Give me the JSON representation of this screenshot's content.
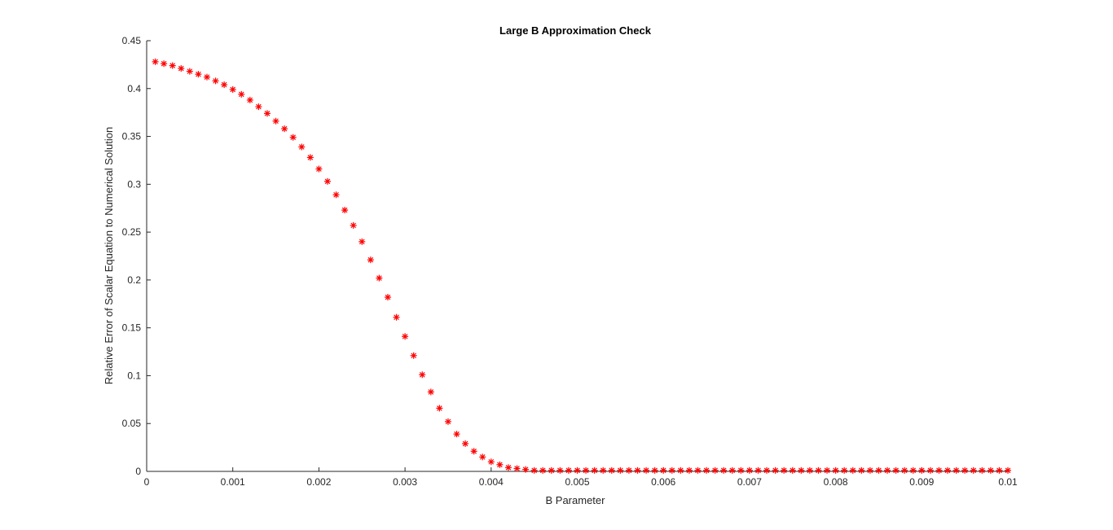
{
  "chart_data": {
    "type": "scatter",
    "title": "Large B Approximation Check",
    "xlabel": "B Parameter",
    "ylabel": "Relative Error of Scalar Equation to Numerical Solution",
    "xlim": [
      0,
      0.01
    ],
    "ylim": [
      0,
      0.45
    ],
    "xticks": [
      0,
      0.001,
      0.002,
      0.003,
      0.004,
      0.005,
      0.006,
      0.007,
      0.008,
      0.009,
      0.01
    ],
    "xtick_labels": [
      "0",
      "0.001",
      "0.002",
      "0.003",
      "0.004",
      "0.005",
      "0.006",
      "0.007",
      "0.008",
      "0.009",
      "0.01"
    ],
    "yticks": [
      0,
      0.05,
      0.1,
      0.15,
      0.2,
      0.25,
      0.3,
      0.35,
      0.4,
      0.45
    ],
    "ytick_labels": [
      "0",
      "0.05",
      "0.1",
      "0.15",
      "0.2",
      "0.25",
      "0.3",
      "0.35",
      "0.4",
      "0.45"
    ],
    "grid": false,
    "marker": "asterisk",
    "color": "#ff0000",
    "series": [
      {
        "x": [
          0.0001,
          0.0002,
          0.0003,
          0.0004,
          0.0005,
          0.0006,
          0.0007,
          0.0008,
          0.0009,
          0.001,
          0.0011,
          0.0012,
          0.0013,
          0.0014,
          0.0015,
          0.0016,
          0.0017,
          0.0018,
          0.0019,
          0.002,
          0.0021,
          0.0022,
          0.0023,
          0.0024,
          0.0025,
          0.0026,
          0.0027,
          0.0028,
          0.0029,
          0.003,
          0.0031,
          0.0032,
          0.0033,
          0.0034,
          0.0035,
          0.0036,
          0.0037,
          0.0038,
          0.0039,
          0.004,
          0.0041,
          0.0042,
          0.0043,
          0.0044,
          0.0045,
          0.0046,
          0.0047,
          0.0048,
          0.0049,
          0.005,
          0.0051,
          0.0052,
          0.0053,
          0.0054,
          0.0055,
          0.0056,
          0.0057,
          0.0058,
          0.0059,
          0.006,
          0.0061,
          0.0062,
          0.0063,
          0.0064,
          0.0065,
          0.0066,
          0.0067,
          0.0068,
          0.0069,
          0.007,
          0.0071,
          0.0072,
          0.0073,
          0.0074,
          0.0075,
          0.0076,
          0.0077,
          0.0078,
          0.0079,
          0.008,
          0.0081,
          0.0082,
          0.0083,
          0.0084,
          0.0085,
          0.0086,
          0.0087,
          0.0088,
          0.0089,
          0.009,
          0.0091,
          0.0092,
          0.0093,
          0.0094,
          0.0095,
          0.0096,
          0.0097,
          0.0098,
          0.0099,
          0.01
        ],
        "y": [
          0.428,
          0.426,
          0.424,
          0.421,
          0.418,
          0.415,
          0.412,
          0.408,
          0.404,
          0.399,
          0.394,
          0.388,
          0.381,
          0.374,
          0.366,
          0.358,
          0.349,
          0.339,
          0.328,
          0.316,
          0.303,
          0.289,
          0.273,
          0.257,
          0.24,
          0.221,
          0.202,
          0.182,
          0.161,
          0.141,
          0.121,
          0.101,
          0.083,
          0.066,
          0.052,
          0.039,
          0.029,
          0.021,
          0.015,
          0.01,
          0.007,
          0.004,
          0.003,
          0.002,
          0.001,
          0.001,
          0.001,
          0.001,
          0.001,
          0.001,
          0.001,
          0.001,
          0.001,
          0.001,
          0.001,
          0.001,
          0.001,
          0.001,
          0.001,
          0.001,
          0.001,
          0.001,
          0.001,
          0.001,
          0.001,
          0.001,
          0.001,
          0.001,
          0.001,
          0.001,
          0.001,
          0.001,
          0.001,
          0.001,
          0.001,
          0.001,
          0.001,
          0.001,
          0.001,
          0.001,
          0.001,
          0.001,
          0.001,
          0.001,
          0.001,
          0.001,
          0.001,
          0.001,
          0.001,
          0.001,
          0.001,
          0.001,
          0.001,
          0.001,
          0.001,
          0.001,
          0.001,
          0.001,
          0.001,
          0.001
        ]
      }
    ]
  }
}
